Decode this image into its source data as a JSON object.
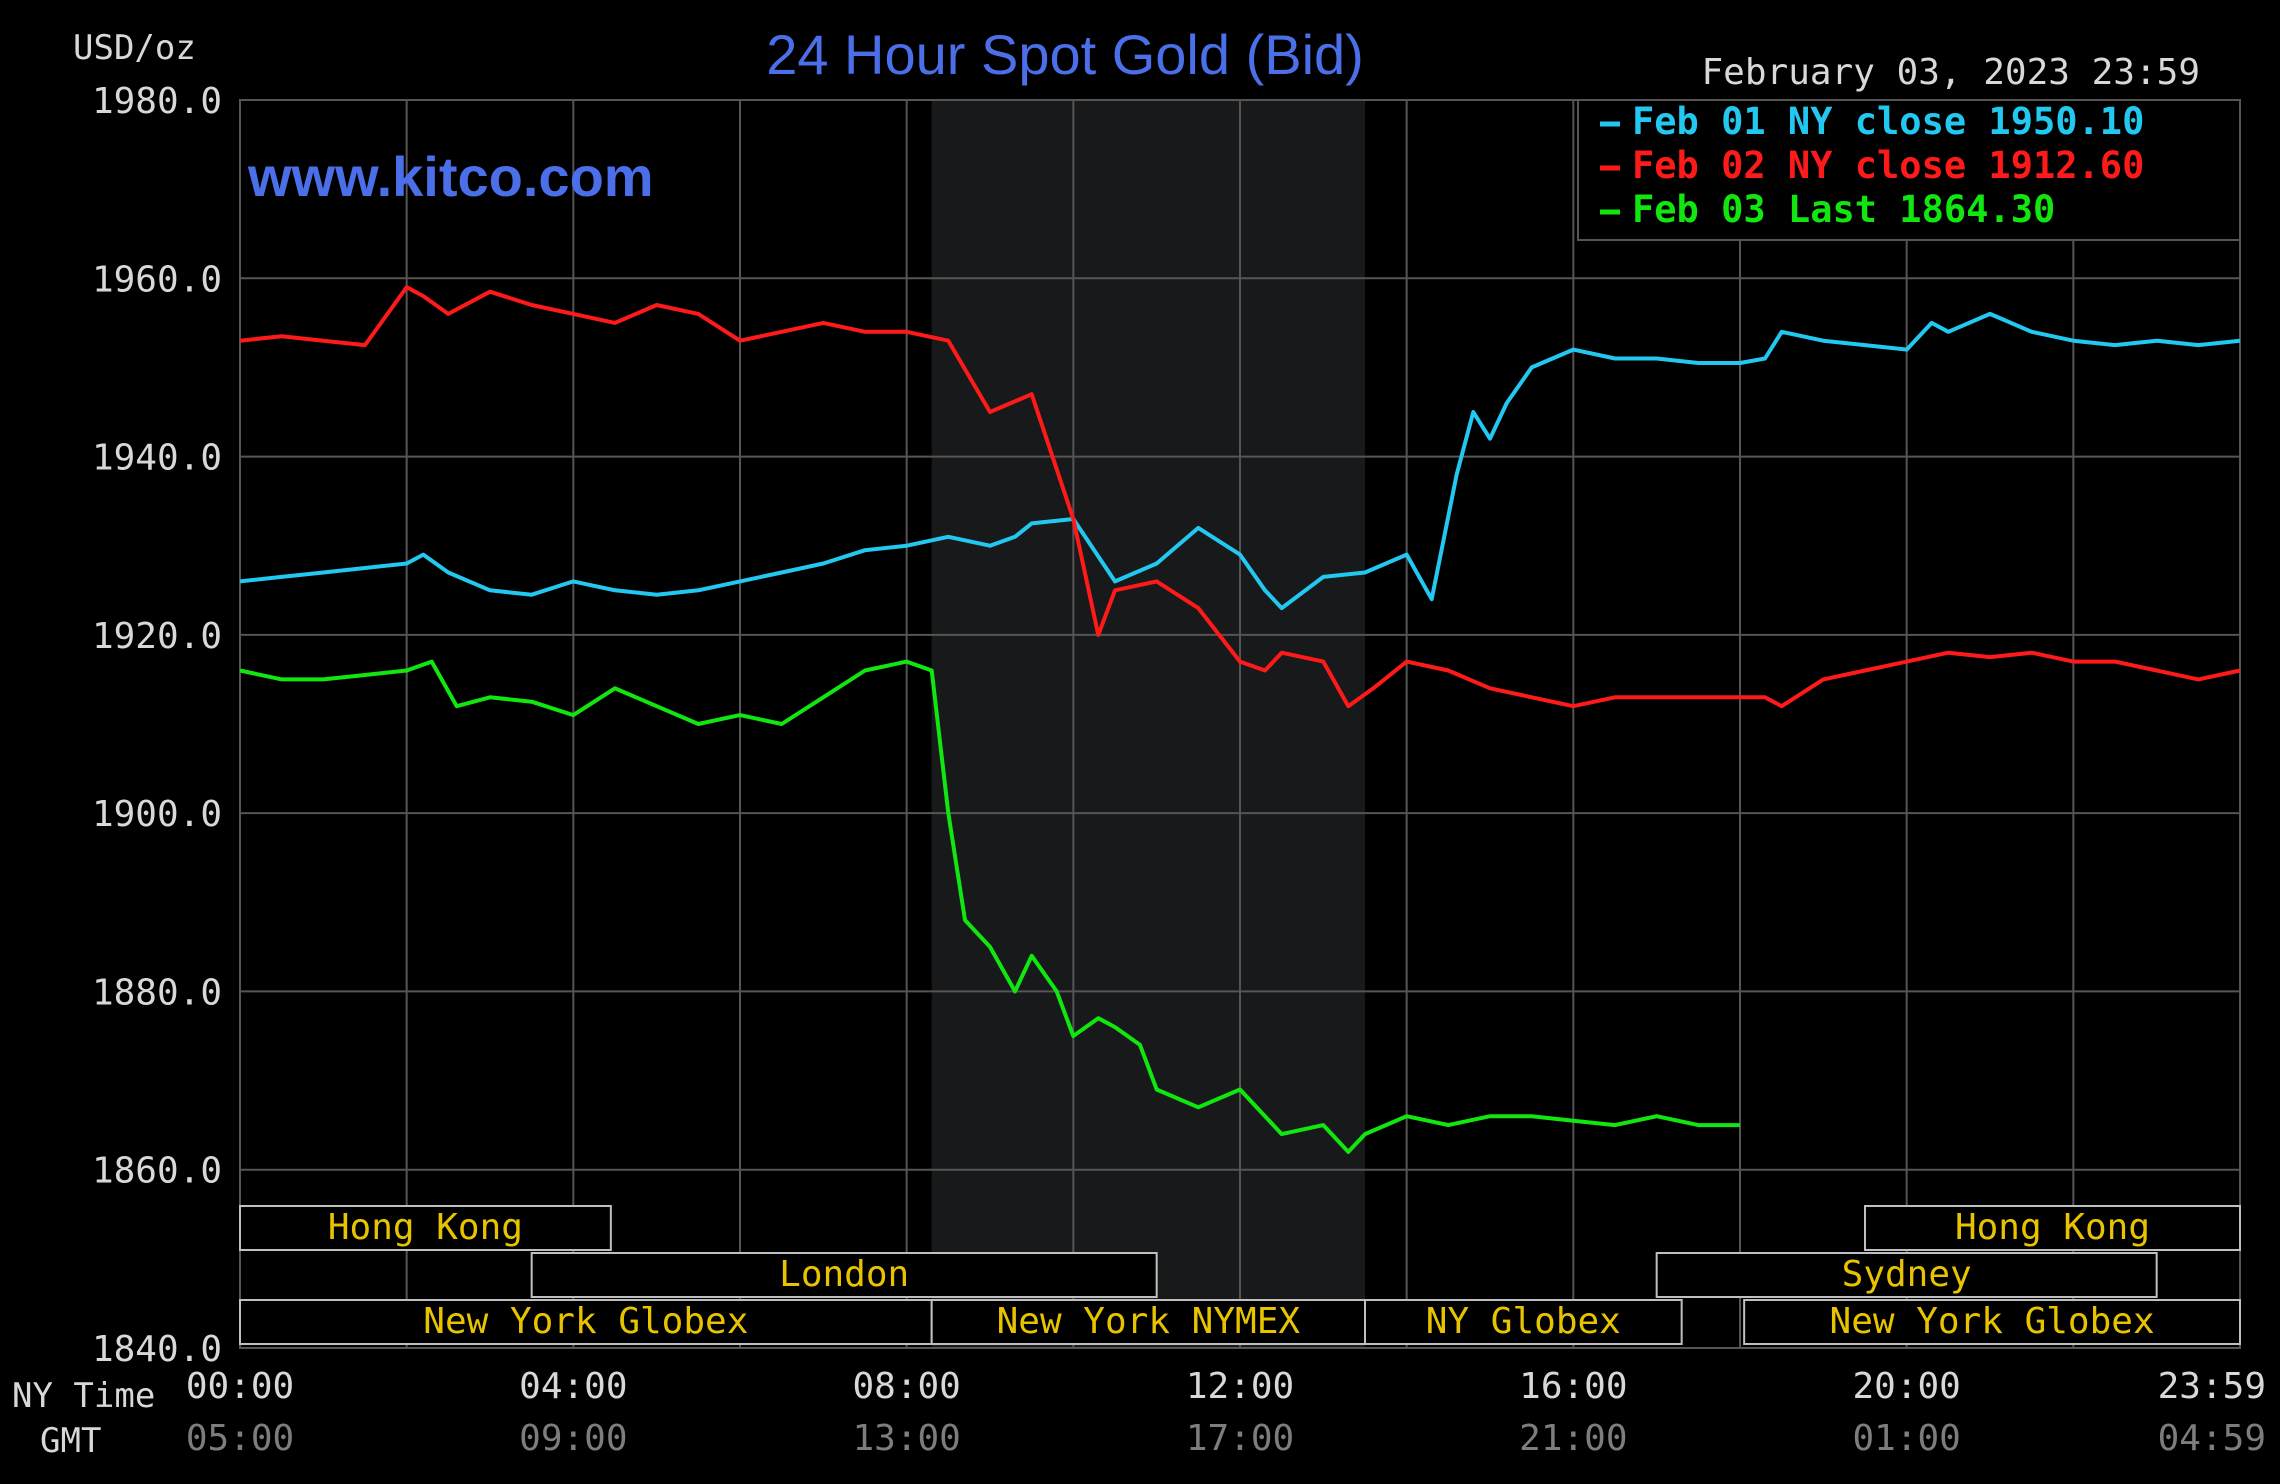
{
  "chart_data": {
    "type": "line",
    "title": "24 Hour Spot Gold (Bid)",
    "website": "www.kitco.com",
    "date_stamp": "February 03, 2023 23:59",
    "ylabel": "USD/oz",
    "ylim": [
      1840,
      1980
    ],
    "y_ticks": [
      "1980.0",
      "1960.0",
      "1940.0",
      "1920.0",
      "1900.0",
      "1880.0",
      "1860.0",
      "1840.0"
    ],
    "x_unit": "hours NY time",
    "xlim": [
      0,
      24
    ],
    "x_row_labels": {
      "ny": "NY Time",
      "gmt": "GMT"
    },
    "x_ticks_ny": [
      "00:00",
      "04:00",
      "08:00",
      "12:00",
      "16:00",
      "20:00",
      "23:59"
    ],
    "x_ticks_gmt": [
      "05:00",
      "09:00",
      "13:00",
      "17:00",
      "21:00",
      "01:00",
      "04:59"
    ],
    "grid": true,
    "legend_position": "top-right",
    "highlight_band_hours": [
      8.3,
      13.5
    ],
    "series": [
      {
        "name": "Feb 01 NY close 1950.10",
        "color": "#22c8f0",
        "x": [
          0,
          0.5,
          1,
          1.5,
          2,
          2.2,
          2.5,
          3,
          3.5,
          4,
          4.5,
          5,
          5.5,
          6,
          6.5,
          7,
          7.5,
          8,
          8.5,
          9,
          9.3,
          9.5,
          10,
          10.5,
          11,
          11.5,
          12,
          12.3,
          12.5,
          13,
          13.5,
          14,
          14.3,
          14.6,
          14.8,
          15,
          15.2,
          15.5,
          16,
          16.5,
          17,
          17.5,
          18,
          18.3,
          18.5,
          19,
          19.5,
          20,
          20.3,
          20.5,
          21,
          21.5,
          22,
          22.5,
          23,
          23.5,
          24
        ],
        "y": [
          1926,
          1926.5,
          1927,
          1927.5,
          1928,
          1929,
          1927,
          1925,
          1924.5,
          1926,
          1925,
          1924.5,
          1925,
          1926,
          1927,
          1928,
          1929.5,
          1930,
          1931,
          1930,
          1931,
          1932.5,
          1933,
          1926,
          1928,
          1932,
          1929,
          1925,
          1923,
          1926.5,
          1927,
          1929,
          1924,
          1938,
          1945,
          1942,
          1946,
          1950,
          1952,
          1951,
          1951,
          1950.5,
          1950.5,
          1951,
          1954,
          1953,
          1952.5,
          1952,
          1955,
          1954,
          1956,
          1954,
          1953,
          1952.5,
          1953,
          1952.5,
          1953
        ]
      },
      {
        "name": "Feb 02 NY close 1912.60",
        "color": "#ff1a1a",
        "x": [
          0,
          0.5,
          1,
          1.5,
          2,
          2.2,
          2.5,
          3,
          3.5,
          4,
          4.5,
          5,
          5.5,
          6,
          6.5,
          7,
          7.5,
          8,
          8.5,
          9,
          9.5,
          10,
          10.3,
          10.5,
          11,
          11.5,
          12,
          12.3,
          12.5,
          13,
          13.3,
          13.6,
          14,
          14.5,
          15,
          15.5,
          16,
          16.5,
          17,
          17.5,
          18,
          18.3,
          18.5,
          19,
          19.5,
          20,
          20.5,
          21,
          21.5,
          22,
          22.5,
          23,
          23.5,
          24
        ],
        "y": [
          1953,
          1953.5,
          1953,
          1952.5,
          1959,
          1958,
          1956,
          1958.5,
          1957,
          1956,
          1955,
          1957,
          1956,
          1953,
          1954,
          1955,
          1954,
          1954,
          1953,
          1945,
          1947,
          1933,
          1920,
          1925,
          1926,
          1923,
          1917,
          1916,
          1918,
          1917,
          1912,
          1914,
          1917,
          1916,
          1914,
          1913,
          1912,
          1913,
          1913,
          1913,
          1913,
          1913,
          1912,
          1915,
          1916,
          1917,
          1918,
          1917.5,
          1918,
          1917,
          1917,
          1916,
          1915,
          1916
        ]
      },
      {
        "name": "Feb 03 Last 1864.30",
        "color": "#11e611",
        "x": [
          0,
          0.5,
          1,
          1.5,
          2,
          2.3,
          2.6,
          3,
          3.5,
          4,
          4.5,
          5,
          5.5,
          6,
          6.5,
          7,
          7.5,
          8,
          8.3,
          8.5,
          8.7,
          9,
          9.3,
          9.5,
          9.8,
          10,
          10.3,
          10.5,
          10.8,
          11,
          11.5,
          12,
          12.3,
          12.5,
          13,
          13.3,
          13.5,
          14,
          14.5,
          15,
          15.5,
          16,
          16.5,
          17,
          17.5,
          18
        ],
        "y": [
          1916,
          1915,
          1915,
          1915.5,
          1916,
          1917,
          1912,
          1913,
          1912.5,
          1911,
          1914,
          1912,
          1910,
          1911,
          1910,
          1913,
          1916,
          1917,
          1916,
          1900,
          1888,
          1885,
          1880,
          1884,
          1880,
          1875,
          1877,
          1876,
          1874,
          1869,
          1867,
          1869,
          1866,
          1864,
          1865,
          1862,
          1864,
          1866,
          1865,
          1866,
          1866,
          1865.5,
          1865,
          1866,
          1865,
          1865
        ]
      }
    ],
    "sessions": [
      {
        "label": "Hong Kong",
        "start": 0,
        "end": 4.45,
        "row": 0
      },
      {
        "label": "London",
        "start": 3.5,
        "end": 11,
        "row": 1
      },
      {
        "label": "New York Globex",
        "start": 0,
        "end": 8.3,
        "row": 2
      },
      {
        "label": "New York NYMEX",
        "start": 8.3,
        "end": 13.5,
        "row": 2
      },
      {
        "label": "NY Globex",
        "start": 13.5,
        "end": 17.3,
        "row": 2
      },
      {
        "label": "Hong Kong",
        "start": 19.5,
        "end": 24,
        "row": 0
      },
      {
        "label": "Sydney",
        "start": 17,
        "end": 23,
        "row": 1
      },
      {
        "label": "New York Globex",
        "start": 18.05,
        "end": 24,
        "row": 2
      }
    ]
  },
  "colors": {
    "background": "#000000",
    "grid": "#555555",
    "band": "#17191a",
    "axis_text": "#d8d8d8",
    "gmt_text": "#7d7d7d",
    "title": "#4b6fe8",
    "session_text": "#e8c400",
    "session_border": "#bfbfbf"
  }
}
